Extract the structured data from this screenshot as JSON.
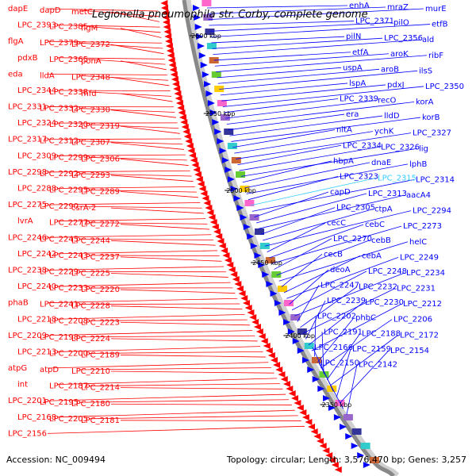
{
  "title": "Legionella pneumophila str. Corby, complete genome",
  "accession": "Accession: NC_009494",
  "summary": "Topology: circular; Length: 3,576,470 bp; Genes: 3,257",
  "colors": {
    "reverse": "#ff0000",
    "forward": "#0000ff",
    "highlight": "#33ccff",
    "backbone": "#888888"
  },
  "ticks": [
    "2600 kbp",
    "2550 kbp",
    "2500 kbp",
    "2450 kbp",
    "2400 kbp",
    "2350 kbp"
  ],
  "genes_reverse_strand": [
    "dapE",
    "dapD",
    "metC",
    "LPC_2393",
    "LPC_2385",
    "flgM",
    "flgA",
    "LPC_2379",
    "LPC_2372",
    "pdxB",
    "LPC_2365",
    "ponA",
    "eda",
    "lldA",
    "LPC_2348",
    "LPC_2344",
    "LPC_2338",
    "mfd",
    "LPC_2331",
    "LPC_2332",
    "LPC_2330",
    "LPC_2324",
    "LPC_2320",
    "LPC_2319",
    "LPC_2317",
    "LPC_2312",
    "LPC_2307",
    "LPC_2309",
    "LPC_2299",
    "LPC_2306",
    "LPC_2298",
    "LPC_2292",
    "LPC_2293",
    "LPC_2288",
    "LPC_2295",
    "LPC_2289",
    "LPC_2275",
    "LPC_2290",
    "csrA-2",
    "lvrA",
    "LPC_2277",
    "LPC_2272",
    "LPC_2246",
    "LPC_2245",
    "LPC_2244",
    "LPC_2242",
    "LPC_2243",
    "LPC_2237",
    "LPC_2238",
    "LPC_2229",
    "LPC_2225",
    "LPC_2240",
    "LPC_2233",
    "LPC_2220",
    "phaB",
    "LPC_2241",
    "LPC_2228",
    "LPC_2218",
    "LPC_2208",
    "LPC_2223",
    "LPC_2209",
    "LPC_2198",
    "LPC_2224",
    "LPC_2213",
    "LPC_2200",
    "LPC_2189",
    "atpG",
    "atpD",
    "LPC_2210",
    "int",
    "LPC_2187",
    "LPC_2214",
    "LPC_2201",
    "LPC_2195",
    "LPC_2180",
    "LPC_2168",
    "LPC_2205",
    "LPC_2181",
    "LPC_2156"
  ],
  "genes_forward_strand": [
    "enhA",
    "mraZ",
    "murE",
    "LPC_2371",
    "pilO",
    "etfB",
    "pilN",
    "LPC_2356",
    "ald",
    "etfA",
    "aroK",
    "ribF",
    "uspA",
    "aroB",
    "ilsS",
    "lspA",
    "pdxJ",
    "LPC_2350",
    "LPC_2339",
    "recO",
    "korA",
    "era",
    "lldD",
    "korB",
    "nltA",
    "ychK",
    "LPC_2327",
    "LPC_2334",
    "LPC_2326",
    "lig",
    "hbpA",
    "dnaE",
    "lphB",
    "LPC_2323",
    "LPC_2315",
    "LPC_2314",
    "capD",
    "LPC_2313",
    "aacA4",
    "LPC_2305",
    "ctpA",
    "LPC_2294",
    "cecC",
    "cebC",
    "LPC_2273",
    "LPC_2270",
    "cebB",
    "helC",
    "cecB",
    "cebA",
    "LPC_2249",
    "deoA",
    "LPC_2248",
    "LPC_2234",
    "LPC_2247",
    "LPC_2232",
    "LPC_2231",
    "LPC_2239",
    "LPC_2230",
    "LPC_2212",
    "LPC_2202",
    "phbC",
    "LPC_2206",
    "LPC_2191",
    "LPC_2188",
    "LPC_2172",
    "LPC_2166",
    "LPC_2159",
    "LPC_2154",
    "LPC_2150",
    "LPC_2142"
  ]
}
